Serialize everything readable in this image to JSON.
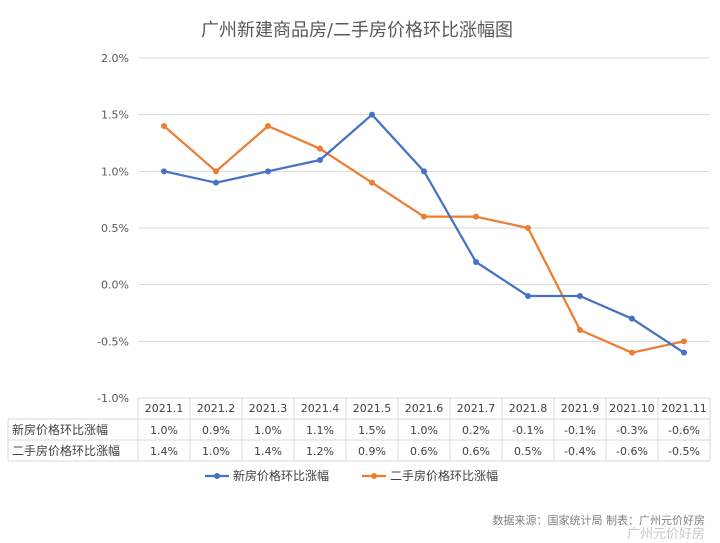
{
  "title": "广州新建商品房/二手房价格环比涨幅图",
  "source_text": "数据来源：国家统计局 制表：广州元价好房",
  "watermark": "广州元价好房",
  "colors": {
    "series1": "#4472C4",
    "series2": "#ED7D31",
    "grid": "#d9d9d9",
    "axis": "#bfbfbf"
  },
  "chart_data": {
    "type": "line",
    "title": "广州新建商品房/二手房价格环比涨幅图",
    "categories": [
      "2021.1",
      "2021.2",
      "2021.3",
      "2021.4",
      "2021.5",
      "2021.6",
      "2021.7",
      "2021.8",
      "2021.9",
      "2021.10",
      "2021.11"
    ],
    "ylim": [
      -1.0,
      2.0
    ],
    "yticks": [
      "2.0%",
      "1.5%",
      "1.0%",
      "0.5%",
      "0.0%",
      "-0.5%",
      "-1.0%"
    ],
    "ytick_values": [
      2.0,
      1.5,
      1.0,
      0.5,
      0.0,
      -0.5,
      -1.0
    ],
    "grid": true,
    "legend_position": "bottom",
    "series": [
      {
        "name": "新房价格环比涨幅",
        "values": [
          1.0,
          0.9,
          1.0,
          1.1,
          1.5,
          1.0,
          0.2,
          -0.1,
          -0.1,
          -0.3,
          -0.6
        ],
        "labels": [
          "1.0%",
          "0.9%",
          "1.0%",
          "1.1%",
          "1.5%",
          "1.0%",
          "0.2%",
          "-0.1%",
          "-0.1%",
          "-0.3%",
          "-0.6%"
        ]
      },
      {
        "name": "二手房价格环比涨幅",
        "values": [
          1.4,
          1.0,
          1.4,
          1.2,
          0.9,
          0.6,
          0.6,
          0.5,
          -0.4,
          -0.6,
          -0.5
        ],
        "labels": [
          "1.4%",
          "1.0%",
          "1.4%",
          "1.2%",
          "0.9%",
          "0.6%",
          "0.6%",
          "0.5%",
          "-0.4%",
          "-0.6%",
          "-0.5%"
        ]
      }
    ]
  }
}
